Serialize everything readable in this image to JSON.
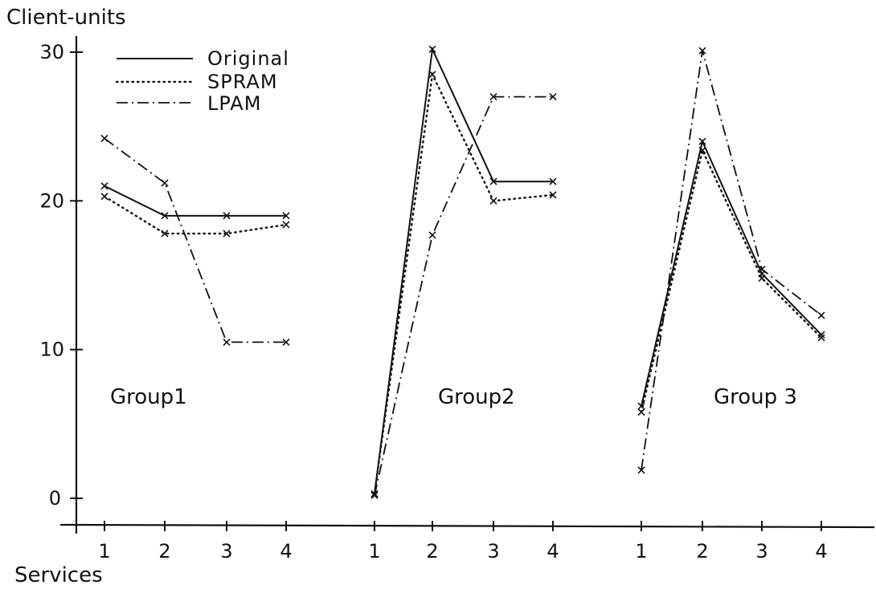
{
  "chart_data": {
    "type": "line",
    "title": "",
    "ylabel": "Client-units",
    "xlabel": "Services",
    "ylim": [
      0,
      30
    ],
    "yticks": [
      0,
      10,
      20,
      30
    ],
    "legend_position": "top-left",
    "groups": [
      {
        "name": "Group1",
        "x": [
          "1",
          "2",
          "3",
          "4"
        ],
        "series": [
          {
            "name": "Original",
            "style": "solid",
            "values": [
              21,
              19,
              19,
              19
            ]
          },
          {
            "name": "SPRAM",
            "style": "dotted",
            "values": [
              20.3,
              17.8,
              17.8,
              18.4
            ]
          },
          {
            "name": "LPAM",
            "style": "dashdot",
            "values": [
              24.2,
              21.2,
              10.5,
              10.5
            ]
          }
        ]
      },
      {
        "name": "Group2",
        "x": [
          "1",
          "2",
          "3",
          "4"
        ],
        "series": [
          {
            "name": "Original",
            "style": "solid",
            "values": [
              0.3,
              30.2,
              21.3,
              21.3
            ]
          },
          {
            "name": "SPRAM",
            "style": "dotted",
            "values": [
              0.3,
              28.5,
              20.0,
              20.4
            ]
          },
          {
            "name": "LPAM",
            "style": "dashdot",
            "values": [
              0.2,
              17.7,
              27.0,
              27.0
            ]
          }
        ]
      },
      {
        "name": "Group 3",
        "x": [
          "1",
          "2",
          "3",
          "4"
        ],
        "series": [
          {
            "name": "Original",
            "style": "solid",
            "values": [
              6.2,
              24.0,
              15.1,
              11.0
            ]
          },
          {
            "name": "SPRAM",
            "style": "dotted",
            "values": [
              5.8,
              23.4,
              14.8,
              10.8
            ]
          },
          {
            "name": "LPAM",
            "style": "dashdot",
            "values": [
              1.9,
              30.1,
              15.4,
              12.3
            ]
          }
        ]
      }
    ]
  }
}
